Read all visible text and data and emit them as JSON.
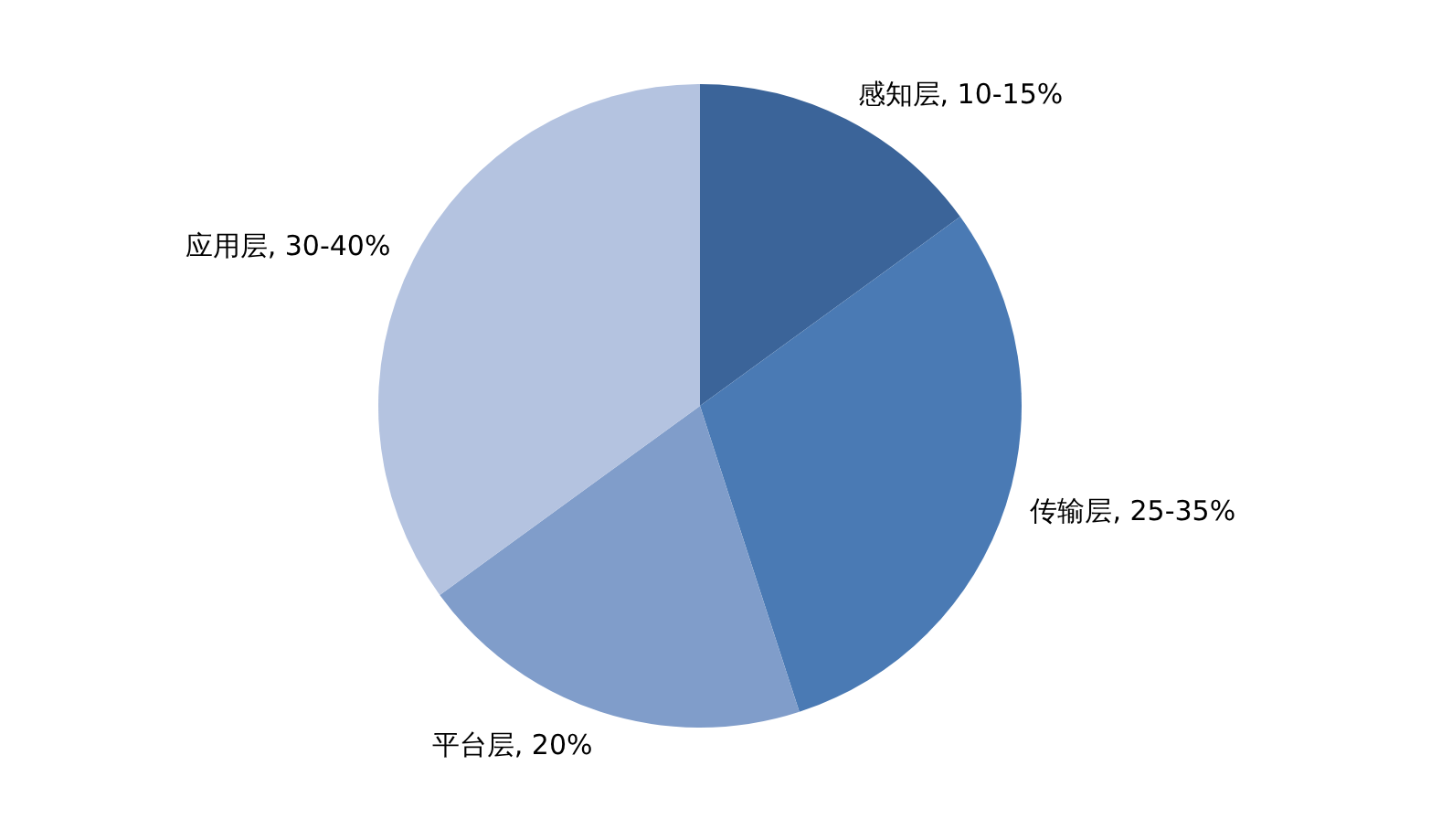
{
  "chart_data": {
    "type": "pie",
    "categories": [
      "感知层, 10-15%",
      "传输层, 25-35%",
      "平台层, 20%",
      "应用层, 30-40%"
    ],
    "values": [
      15,
      30,
      20,
      35
    ],
    "colors": [
      "#3b6499",
      "#4a7ab4",
      "#809dca",
      "#b4c3e0"
    ],
    "legend": false
  }
}
